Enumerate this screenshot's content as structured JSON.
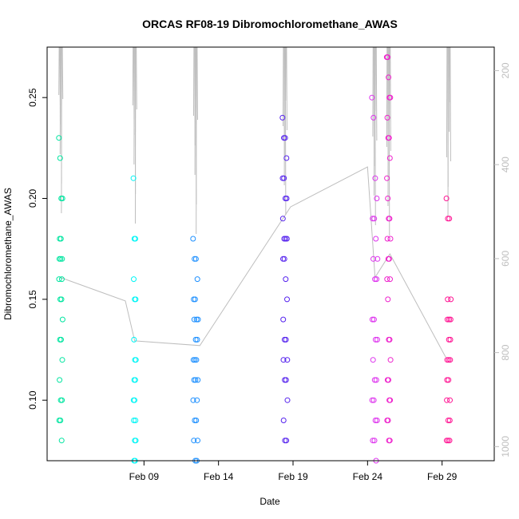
{
  "chart_data": {
    "type": "scatter",
    "title": "ORCAS RF08-19 Dibromochloromethane_AWAS",
    "xlabel": "Date",
    "ylabel": "Dibromochloromethane_AWAS",
    "x_range": [
      "2016-02-02T12:00",
      "2016-03-03T12:00"
    ],
    "ylim": [
      0.07,
      0.275
    ],
    "y_ticks": [
      0.1,
      0.15,
      0.2,
      0.25
    ],
    "y_tick_labels": [
      "0.10",
      "0.15",
      "0.20",
      "0.25"
    ],
    "x_ticks": [
      {
        "label": "Feb 09",
        "date": "2016-02-09"
      },
      {
        "label": "Feb 14",
        "date": "2016-02-14"
      },
      {
        "label": "Feb 19",
        "date": "2016-02-19"
      },
      {
        "label": "Feb 24",
        "date": "2016-02-24"
      },
      {
        "label": "Feb 29",
        "date": "2016-02-29"
      }
    ],
    "right_axis": {
      "ylim_reversed": [
        150,
        1030
      ],
      "ticks": [
        200,
        400,
        600,
        800,
        1000
      ],
      "tick_labels": [
        "200",
        "400",
        "600",
        "800",
        "1000"
      ],
      "color": "#bebebe"
    },
    "grid": false,
    "legend": "none",
    "series": [
      {
        "flight": "RF08",
        "color": "#00e5a0",
        "date": "2016-02-03",
        "span_hours": 6,
        "values": [
          0.23,
          0.22,
          0.2,
          0.2,
          0.18,
          0.18,
          0.17,
          0.17,
          0.17,
          0.16,
          0.16,
          0.15,
          0.15,
          0.14,
          0.13,
          0.13,
          0.12,
          0.11,
          0.1,
          0.1,
          0.09,
          0.09,
          0.08
        ]
      },
      {
        "flight": "RF09",
        "color": "#00f5f5",
        "date": "2016-02-08",
        "span_hours": 4,
        "values": [
          0.21,
          0.18,
          0.18,
          0.16,
          0.15,
          0.15,
          0.13,
          0.12,
          0.12,
          0.11,
          0.11,
          0.1,
          0.1,
          0.09,
          0.09,
          0.08,
          0.08,
          0.07,
          0.07
        ]
      },
      {
        "flight": "RF10",
        "color": "#1e90ff",
        "date": "2016-02-12",
        "span_hours": 8,
        "values": [
          0.18,
          0.17,
          0.17,
          0.16,
          0.15,
          0.15,
          0.14,
          0.14,
          0.14,
          0.13,
          0.13,
          0.12,
          0.12,
          0.12,
          0.11,
          0.11,
          0.11,
          0.1,
          0.1,
          0.09,
          0.09,
          0.08,
          0.08,
          0.07,
          0.07
        ]
      },
      {
        "flight": "RF11",
        "color": "#5522ee",
        "date": "2016-02-18",
        "span_hours": 8,
        "values": [
          0.24,
          0.23,
          0.23,
          0.22,
          0.21,
          0.21,
          0.2,
          0.2,
          0.19,
          0.18,
          0.18,
          0.18,
          0.17,
          0.17,
          0.16,
          0.15,
          0.14,
          0.13,
          0.13,
          0.12,
          0.12,
          0.11,
          0.11,
          0.1,
          0.09,
          0.08,
          0.08
        ]
      },
      {
        "flight": "RF12",
        "color": "#dd33ee",
        "date": "2016-02-24",
        "span_hours": 9,
        "values": [
          0.25,
          0.24,
          0.21,
          0.2,
          0.19,
          0.19,
          0.18,
          0.17,
          0.17,
          0.16,
          0.16,
          0.14,
          0.14,
          0.13,
          0.13,
          0.12,
          0.11,
          0.11,
          0.1,
          0.1,
          0.09,
          0.09,
          0.08,
          0.08,
          0.07
        ]
      },
      {
        "flight": "RF13",
        "color": "#ee22cc",
        "date": "2016-02-25",
        "span_hours": 6,
        "values": [
          0.27,
          0.27,
          0.26,
          0.25,
          0.25,
          0.24,
          0.23,
          0.23,
          0.22,
          0.21,
          0.2,
          0.19,
          0.19,
          0.18,
          0.18,
          0.17,
          0.17,
          0.16,
          0.16,
          0.15,
          0.13,
          0.13,
          0.12,
          0.11,
          0.11,
          0.1,
          0.1,
          0.09,
          0.09,
          0.08,
          0.08
        ]
      },
      {
        "flight": "RF14",
        "color": "#ff1493",
        "date": "2016-02-29",
        "span_hours": 7,
        "values": [
          0.2,
          0.19,
          0.19,
          0.15,
          0.15,
          0.14,
          0.14,
          0.14,
          0.13,
          0.13,
          0.12,
          0.12,
          0.12,
          0.11,
          0.11,
          0.1,
          0.1,
          0.09,
          0.09,
          0.08,
          0.08,
          0.08
        ]
      }
    ],
    "pressure_trace": {
      "color": "#bebebe",
      "points": [
        {
          "date": "2016-02-03T09:00",
          "value": 640
        },
        {
          "date": "2016-02-07T18:00",
          "value": 690
        },
        {
          "date": "2016-02-08T09:00",
          "value": 775
        },
        {
          "date": "2016-02-12T18:00",
          "value": 785
        },
        {
          "date": "2016-02-18T20:00",
          "value": 490
        },
        {
          "date": "2016-02-24T00:00",
          "value": 405
        },
        {
          "date": "2016-02-24T12:00",
          "value": 640
        },
        {
          "date": "2016-02-25T12:00",
          "value": 590
        },
        {
          "date": "2016-02-29T06:00",
          "value": 810
        }
      ]
    }
  }
}
